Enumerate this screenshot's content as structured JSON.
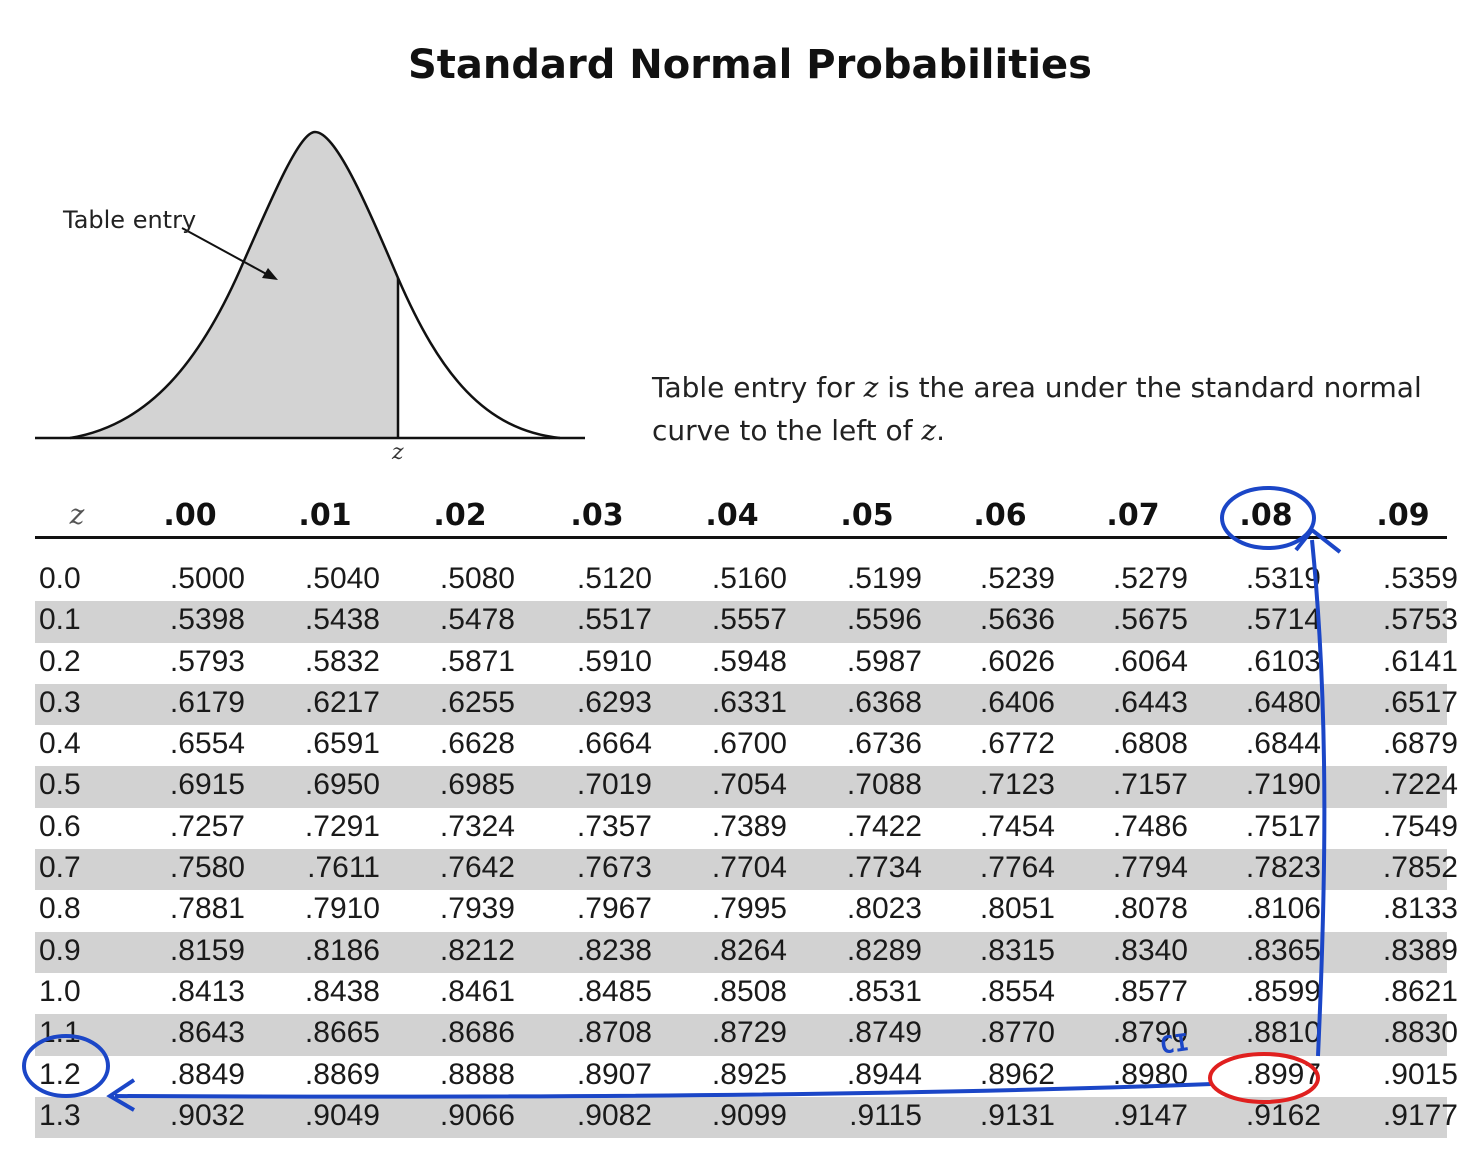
{
  "title": "Standard Normal Probabilities",
  "figure": {
    "curve_label": "Table entry",
    "z_marker": "z"
  },
  "description": {
    "part1": "Table entry for ",
    "var1": "z",
    "part2": " is the area under the standard normal curve to the left of ",
    "var2": "z",
    "part3": "."
  },
  "table": {
    "z_header": "z",
    "columns": [
      ".00",
      ".01",
      ".02",
      ".03",
      ".04",
      ".05",
      ".06",
      ".07",
      ".08",
      ".09"
    ],
    "rows": [
      {
        "z": "0.0",
        "values": [
          ".5000",
          ".5040",
          ".5080",
          ".5120",
          ".5160",
          ".5199",
          ".5239",
          ".5279",
          ".5319",
          ".5359"
        ]
      },
      {
        "z": "0.1",
        "values": [
          ".5398",
          ".5438",
          ".5478",
          ".5517",
          ".5557",
          ".5596",
          ".5636",
          ".5675",
          ".5714",
          ".5753"
        ]
      },
      {
        "z": "0.2",
        "values": [
          ".5793",
          ".5832",
          ".5871",
          ".5910",
          ".5948",
          ".5987",
          ".6026",
          ".6064",
          ".6103",
          ".6141"
        ]
      },
      {
        "z": "0.3",
        "values": [
          ".6179",
          ".6217",
          ".6255",
          ".6293",
          ".6331",
          ".6368",
          ".6406",
          ".6443",
          ".6480",
          ".6517"
        ]
      },
      {
        "z": "0.4",
        "values": [
          ".6554",
          ".6591",
          ".6628",
          ".6664",
          ".6700",
          ".6736",
          ".6772",
          ".6808",
          ".6844",
          ".6879"
        ]
      },
      {
        "z": "0.5",
        "values": [
          ".6915",
          ".6950",
          ".6985",
          ".7019",
          ".7054",
          ".7088",
          ".7123",
          ".7157",
          ".7190",
          ".7224"
        ]
      },
      {
        "z": "0.6",
        "values": [
          ".7257",
          ".7291",
          ".7324",
          ".7357",
          ".7389",
          ".7422",
          ".7454",
          ".7486",
          ".7517",
          ".7549"
        ]
      },
      {
        "z": "0.7",
        "values": [
          ".7580",
          ".7611",
          ".7642",
          ".7673",
          ".7704",
          ".7734",
          ".7764",
          ".7794",
          ".7823",
          ".7852"
        ]
      },
      {
        "z": "0.8",
        "values": [
          ".7881",
          ".7910",
          ".7939",
          ".7967",
          ".7995",
          ".8023",
          ".8051",
          ".8078",
          ".8106",
          ".8133"
        ]
      },
      {
        "z": "0.9",
        "values": [
          ".8159",
          ".8186",
          ".8212",
          ".8238",
          ".8264",
          ".8289",
          ".8315",
          ".8340",
          ".8365",
          ".8389"
        ]
      },
      {
        "z": "1.0",
        "values": [
          ".8413",
          ".8438",
          ".8461",
          ".8485",
          ".8508",
          ".8531",
          ".8554",
          ".8577",
          ".8599",
          ".8621"
        ]
      },
      {
        "z": "1.1",
        "values": [
          ".8643",
          ".8665",
          ".8686",
          ".8708",
          ".8729",
          ".8749",
          ".8770",
          ".8790",
          ".8810",
          ".8830"
        ]
      },
      {
        "z": "1.2",
        "values": [
          ".8849",
          ".8869",
          ".8888",
          ".8907",
          ".8925",
          ".8944",
          ".8962",
          ".8980",
          ".8997",
          ".9015"
        ]
      },
      {
        "z": "1.3",
        "values": [
          ".9032",
          ".9049",
          ".9066",
          ".9082",
          ".9099",
          ".9115",
          ".9131",
          ".9147",
          ".9162",
          ".9177"
        ]
      }
    ]
  },
  "annotations": {
    "handwritten_note": "CI",
    "ink_blue": "#1b46c7",
    "ink_red": "#e0201f",
    "circled_column": ".08",
    "circled_row": "1.2",
    "circled_value": ".8997"
  },
  "colors": {
    "shaded_row": "#d2d2d2",
    "curve_fill": "#d3d3d3"
  }
}
